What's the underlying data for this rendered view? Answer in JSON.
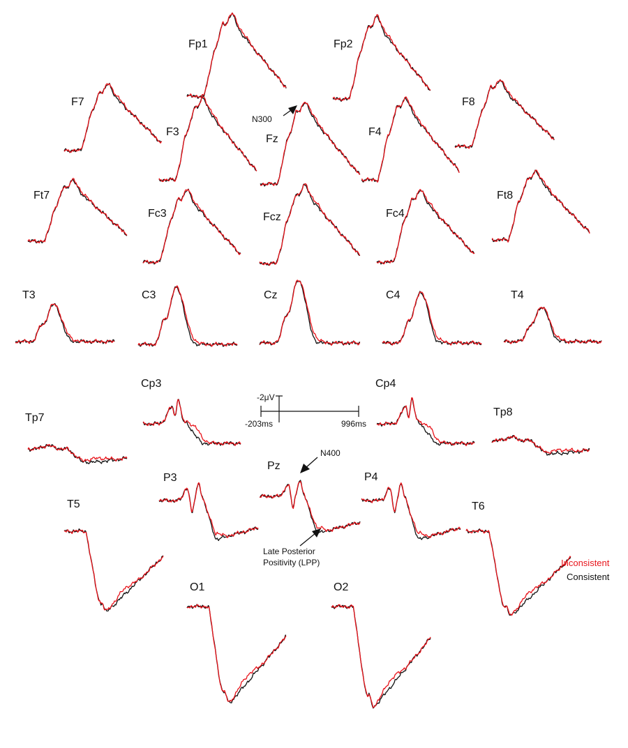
{
  "chart_data": {
    "type": "line",
    "title": "",
    "time_range_ms": [
      -203,
      996
    ],
    "scale_bar": {
      "amplitude_label": "-2μV",
      "time_start_label": "-203ms",
      "time_end_label": "996ms"
    },
    "series": [
      {
        "name": "Inconsistent",
        "color": "#e8141b"
      },
      {
        "name": "Consistent",
        "color": "#111111"
      }
    ],
    "channels": [
      {
        "label": "Fp1",
        "shape": "frontal",
        "pos": "frontal-mid-left"
      },
      {
        "label": "Fp2",
        "shape": "frontal",
        "pos": "frontal-mid-right"
      },
      {
        "label": "F7",
        "shape": "frontal",
        "pos": "lateral-left"
      },
      {
        "label": "F3",
        "shape": "frontal",
        "pos": "inner-left"
      },
      {
        "label": "Fz",
        "shape": "frontal",
        "pos": "midline"
      },
      {
        "label": "F4",
        "shape": "frontal",
        "pos": "inner-right"
      },
      {
        "label": "F8",
        "shape": "frontal",
        "pos": "lateral-right"
      },
      {
        "label": "Ft7",
        "shape": "frontal",
        "pos": "lateral-left"
      },
      {
        "label": "Fc3",
        "shape": "frontal",
        "pos": "inner-left"
      },
      {
        "label": "Fcz",
        "shape": "frontal",
        "pos": "midline"
      },
      {
        "label": "Fc4",
        "shape": "frontal",
        "pos": "inner-right"
      },
      {
        "label": "Ft8",
        "shape": "frontal",
        "pos": "lateral-right"
      },
      {
        "label": "T3",
        "shape": "central",
        "pos": "lateral-left"
      },
      {
        "label": "C3",
        "shape": "central",
        "pos": "inner-left"
      },
      {
        "label": "Cz",
        "shape": "central",
        "pos": "midline"
      },
      {
        "label": "C4",
        "shape": "central",
        "pos": "inner-right"
      },
      {
        "label": "T4",
        "shape": "central",
        "pos": "lateral-right"
      },
      {
        "label": "Cp3",
        "shape": "centroparietal",
        "pos": "inner-left"
      },
      {
        "label": "Cp4",
        "shape": "centroparietal",
        "pos": "inner-right"
      },
      {
        "label": "Tp7",
        "shape": "temporoparietal",
        "pos": "lateral-left"
      },
      {
        "label": "Tp8",
        "shape": "temporoparietal",
        "pos": "lateral-right"
      },
      {
        "label": "P3",
        "shape": "parietal",
        "pos": "inner-left"
      },
      {
        "label": "Pz",
        "shape": "parietal",
        "pos": "midline"
      },
      {
        "label": "P4",
        "shape": "parietal",
        "pos": "inner-right"
      },
      {
        "label": "T5",
        "shape": "occipital",
        "pos": "lateral-left"
      },
      {
        "label": "T6",
        "shape": "occipital",
        "pos": "lateral-right"
      },
      {
        "label": "O1",
        "shape": "occipital",
        "pos": "occipital-left"
      },
      {
        "label": "O2",
        "shape": "occipital",
        "pos": "occipital-right"
      }
    ],
    "annotations": [
      {
        "text": "N300",
        "channel": "Fz"
      },
      {
        "text": "N400",
        "channel": "Pz"
      },
      {
        "text": "Late Posterior",
        "channel": "Pz"
      },
      {
        "text": "Positivity (LPP)",
        "channel": "Pz"
      }
    ],
    "legend": {
      "entries": [
        "Inconsistent",
        "Consistent"
      ],
      "placement": "bottom-right"
    }
  }
}
